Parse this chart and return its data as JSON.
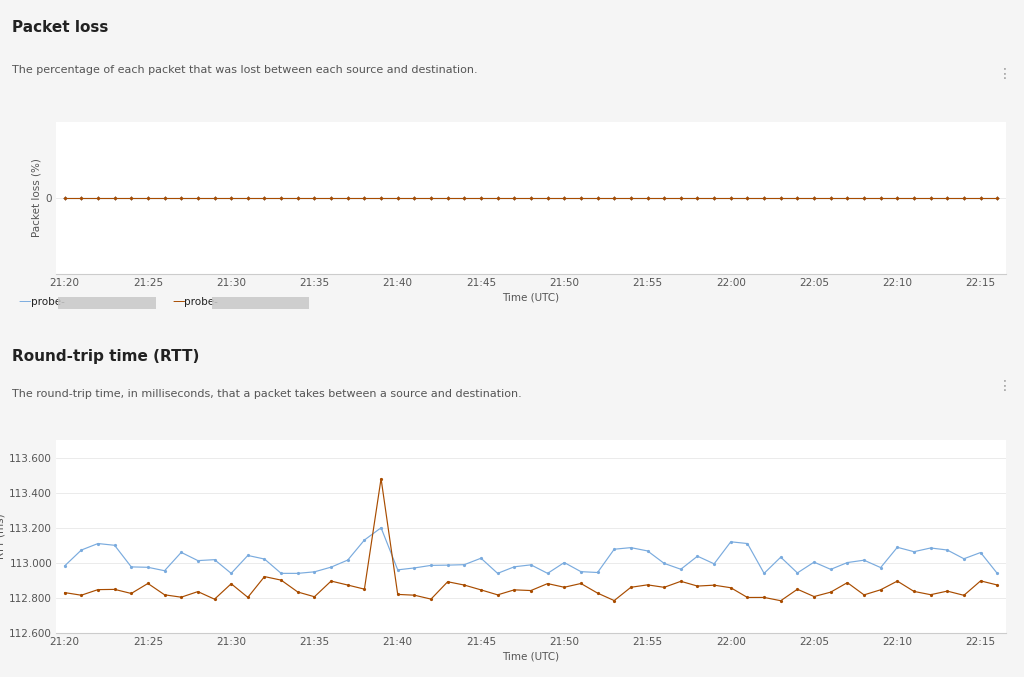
{
  "panel_bg": "#f5f5f5",
  "chart_bg": "#ffffff",
  "title1": "Packet loss",
  "subtitle1": "The percentage of each packet that was lost between each source and destination.",
  "title2": "Round-trip time (RTT)",
  "subtitle2": "The round-trip time, in milliseconds, that a packet takes between a source and destination.",
  "ylabel1": "Packet loss (%)",
  "ylabel2": "RTT (ms)",
  "xlabel": "Time (UTC)",
  "xtick_labels": [
    "21:20",
    "21:25",
    "21:30",
    "21:35",
    "21:40",
    "21:45",
    "21:50",
    "21:55",
    "22:00",
    "22:05",
    "22:10",
    "22:15"
  ],
  "xtick_positions": [
    0,
    5,
    10,
    15,
    20,
    25,
    30,
    35,
    40,
    45,
    50,
    55
  ],
  "color_blue": "#7aabde",
  "color_orange": "#a84c00",
  "ylim1": [
    -0.3,
    0.3
  ],
  "yticks1": [
    0
  ],
  "ylim2": [
    112.6,
    113.7
  ],
  "yticks2": [
    112.6,
    112.8,
    113.0,
    113.2,
    113.4,
    113.6
  ],
  "n_points": 57,
  "legend_label1": "probe-",
  "legend_label2": "probe-",
  "grid_color": "#e8e8e8",
  "separator_color": "#cccccc",
  "text_color": "#222222",
  "subtext_color": "#555555",
  "title_fontsize": 11,
  "subtitle_fontsize": 8,
  "axis_fontsize": 7.5,
  "tick_fontsize": 7.5
}
